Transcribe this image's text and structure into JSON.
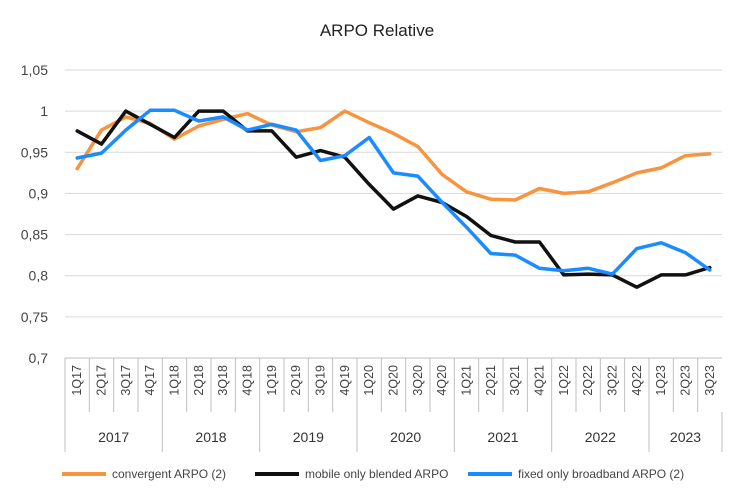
{
  "chart_data": {
    "type": "line",
    "title": "ARPO Relative",
    "xlabel": "",
    "ylabel": "",
    "ylim": [
      0.7,
      1.05
    ],
    "y_ticks": [
      "0,7",
      "0,75",
      "0,8",
      "0,85",
      "0,9",
      "0,95",
      "1",
      "1,05"
    ],
    "grid": "horizontal",
    "legend_position": "bottom",
    "categories": [
      "1Q17",
      "2Q17",
      "3Q17",
      "4Q17",
      "1Q18",
      "2Q18",
      "3Q18",
      "4Q18",
      "1Q19",
      "2Q19",
      "3Q19",
      "4Q19",
      "1Q20",
      "2Q20",
      "3Q20",
      "4Q20",
      "1Q21",
      "2Q21",
      "3Q21",
      "4Q21",
      "1Q22",
      "2Q22",
      "3Q22",
      "4Q22",
      "1Q23",
      "2Q23",
      "3Q23"
    ],
    "year_groups": [
      {
        "label": "2017",
        "count": 4
      },
      {
        "label": "2018",
        "count": 4
      },
      {
        "label": "2019",
        "count": 4
      },
      {
        "label": "2020",
        "count": 4
      },
      {
        "label": "2021",
        "count": 4
      },
      {
        "label": "2022",
        "count": 4
      },
      {
        "label": "2023",
        "count": 3
      }
    ],
    "series": [
      {
        "name": "convergent ARPO (2)",
        "color": "#F7943E",
        "values": [
          0.93,
          0.977,
          0.993,
          0.985,
          0.966,
          0.982,
          0.99,
          0.997,
          0.983,
          0.975,
          0.98,
          1.0,
          0.986,
          0.973,
          0.957,
          0.923,
          0.902,
          0.893,
          0.892,
          0.906,
          0.9,
          0.902,
          0.913,
          0.925,
          0.931,
          0.946,
          0.948
        ]
      },
      {
        "name": "mobile only blended ARPO",
        "color": "#111111",
        "values": [
          0.976,
          0.96,
          1.0,
          0.984,
          0.968,
          1.0,
          1.0,
          0.976,
          0.976,
          0.944,
          0.952,
          0.944,
          0.911,
          0.881,
          0.897,
          0.889,
          0.872,
          0.849,
          0.841,
          0.841,
          0.801,
          0.802,
          0.801,
          0.786,
          0.801,
          0.801,
          0.81
        ]
      },
      {
        "name": "fixed only broadband ARPO (2)",
        "color": "#1A8CFF",
        "values": [
          0.943,
          0.949,
          0.977,
          1.001,
          1.001,
          0.988,
          0.993,
          0.977,
          0.984,
          0.977,
          0.94,
          0.946,
          0.968,
          0.925,
          0.921,
          0.889,
          0.859,
          0.827,
          0.825,
          0.809,
          0.806,
          0.809,
          0.802,
          0.833,
          0.84,
          0.828,
          0.807
        ]
      }
    ]
  }
}
